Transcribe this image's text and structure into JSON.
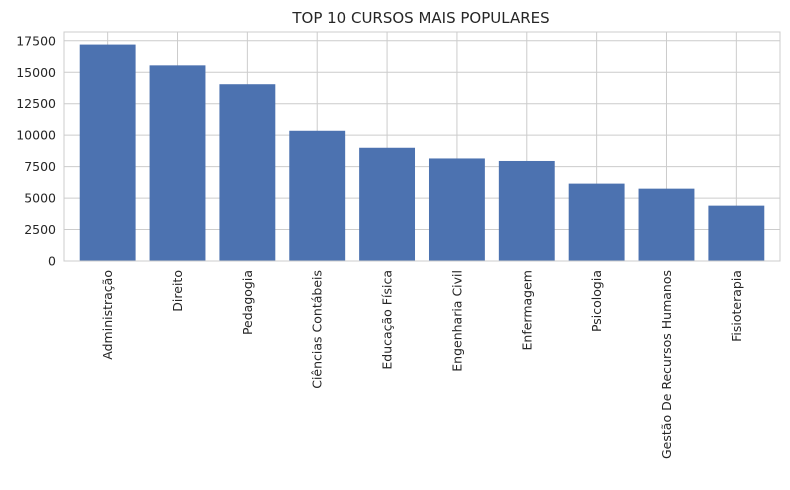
{
  "chart_data": {
    "type": "bar",
    "title": "TOP 10 CURSOS MAIS POPULARES",
    "xlabel": "",
    "ylabel": "",
    "categories": [
      "Administração",
      "Direito",
      "Pedagogia",
      "Ciências Contábeis",
      "Educação Física",
      "Engenharia Civil",
      "Enfermagem",
      "Psicologia",
      "Gestão De Recursos Humanos",
      "Fisioterapia"
    ],
    "values": [
      17200,
      15550,
      14050,
      10350,
      9000,
      8150,
      7950,
      6150,
      5750,
      4400
    ],
    "ylim": [
      0,
      18200
    ],
    "yticks": [
      0,
      2500,
      5000,
      7500,
      10000,
      12500,
      15000,
      17500
    ],
    "ytick_labels": [
      "0",
      "2500",
      "5000",
      "7500",
      "10000",
      "12500",
      "15000",
      "17500"
    ],
    "grid": true,
    "bar_color": "#4c72b0",
    "grid_color": "#cccccc",
    "axis_color": "#cccccc",
    "text_color": "#262626"
  }
}
